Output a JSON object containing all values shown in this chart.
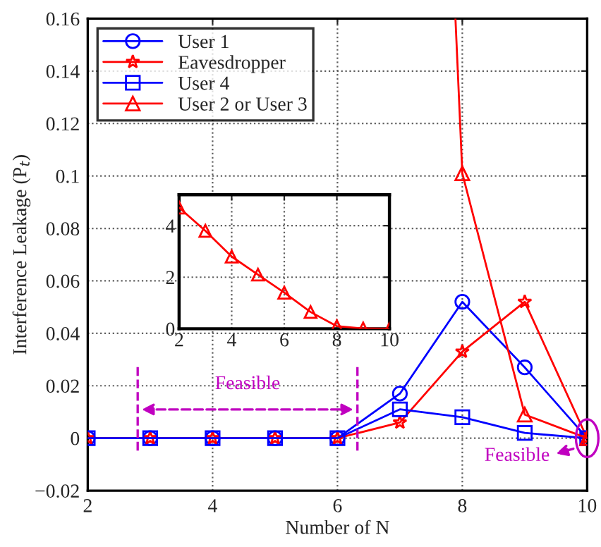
{
  "chart_data": [
    {
      "type": "line",
      "xlabel": "Number of N",
      "ylabel": "Interference Leakage (P$_{t}$)",
      "x": [
        2,
        3,
        4,
        5,
        6,
        7,
        8,
        9,
        10
      ],
      "series": [
        {
          "name": "User 1",
          "color": "#0000ff",
          "marker": "circle",
          "values": [
            0,
            0,
            0,
            0,
            0,
            0.017,
            0.052,
            0.027,
            0
          ]
        },
        {
          "name": "Eavesdropper",
          "color": "#ff0000",
          "marker": "star",
          "values": [
            0,
            0,
            0,
            0,
            0,
            0.006,
            0.033,
            0.052,
            0
          ]
        },
        {
          "name": "User 4",
          "color": "#0000ff",
          "marker": "square",
          "values": [
            0,
            0,
            0,
            0,
            0,
            0.011,
            0.008,
            0.002,
            0
          ]
        },
        {
          "name": "User 2 or User 3",
          "color": "#ff0000",
          "marker": "triangle",
          "x": [
            7.89,
            8,
            9,
            10
          ],
          "values": [
            0.16,
            0.101,
            0.009,
            0
          ]
        }
      ],
      "xlim": [
        2,
        10
      ],
      "xticks": [
        2,
        4,
        6,
        8,
        10
      ],
      "ylim": [
        -0.02,
        0.16
      ],
      "yticks": [
        {
          "value": -0.02,
          "label": "−0.02"
        },
        0,
        0.02,
        0.04,
        0.06,
        0.08,
        {
          "value": 0.1,
          "label": "0.1"
        },
        0.12,
        0.14,
        0.16
      ],
      "grid": true,
      "legend": "top left",
      "line_style": "solid",
      "annotations": [
        "Feasible",
        {
          "text": "Feasible",
          "x": 10,
          "y": 0
        }
      ]
    },
    {
      "type": "line",
      "x": [
        2,
        3,
        4,
        5,
        6,
        7,
        8,
        9,
        10
      ],
      "series": [
        {
          "color": "#ff0000",
          "marker": "triangle",
          "values": [
            4.7,
            3.8,
            2.8,
            2.1,
            1.4,
            0.65,
            0.1,
            0.01,
            0
          ]
        }
      ],
      "xlim": [
        2,
        10
      ],
      "xticks": [
        2,
        4,
        6,
        8,
        10
      ],
      "ylim": [
        0,
        5.2
      ],
      "yticks": [
        0,
        2,
        4
      ],
      "grid": true,
      "line_style": "solid"
    }
  ]
}
